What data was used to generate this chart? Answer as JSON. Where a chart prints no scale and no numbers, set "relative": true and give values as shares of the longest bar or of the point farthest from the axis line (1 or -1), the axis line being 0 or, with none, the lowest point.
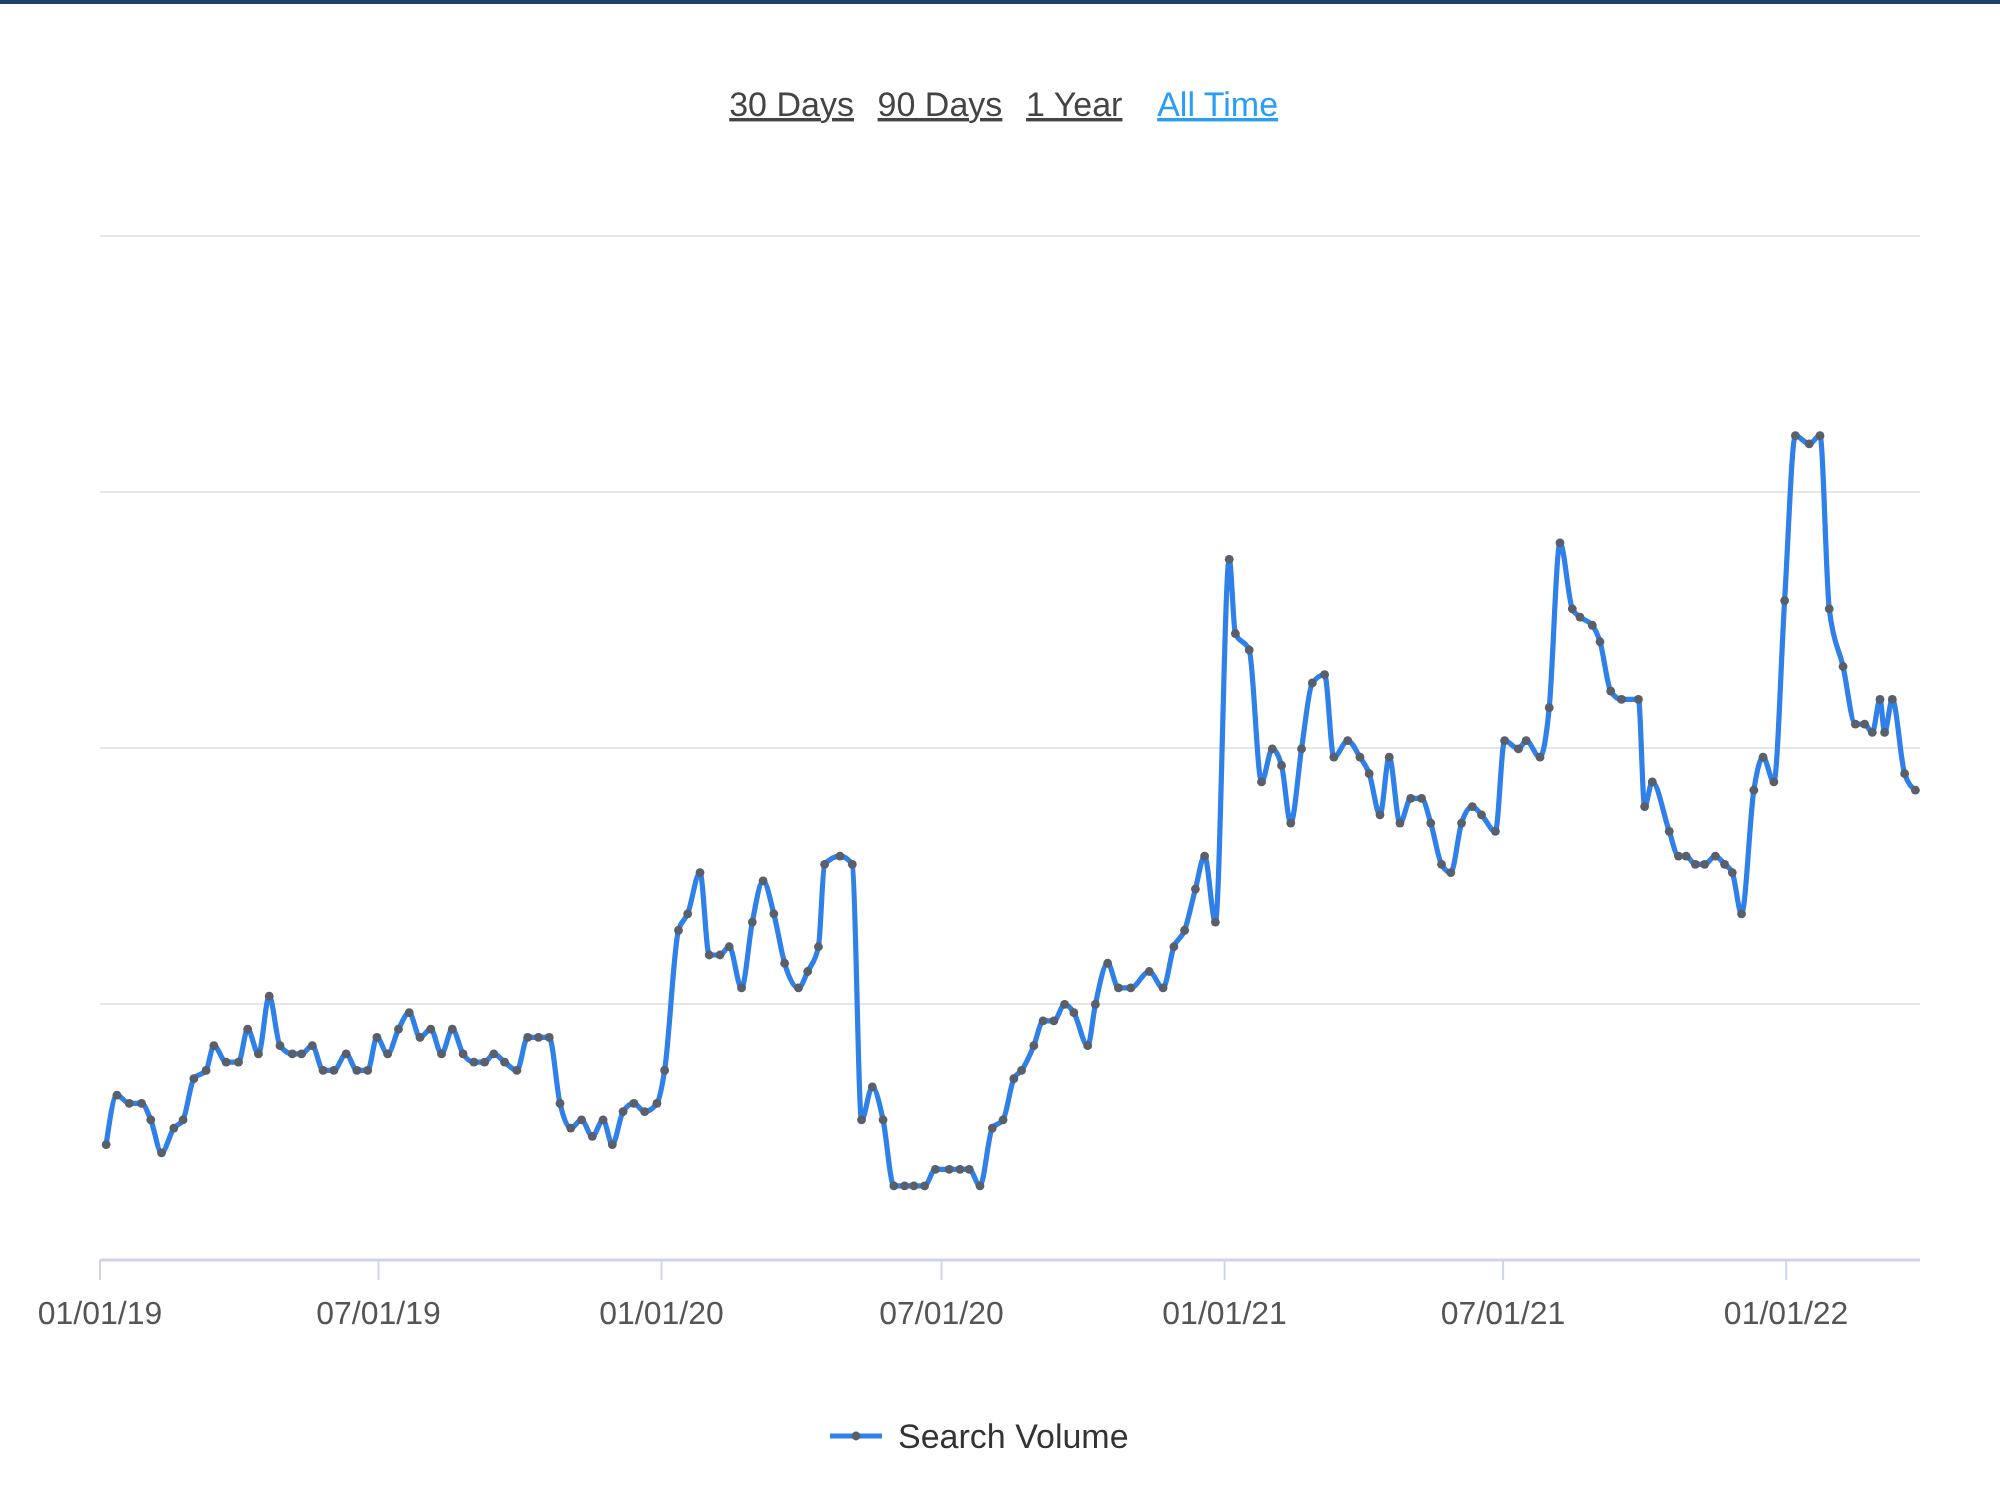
{
  "chart_data": {
    "type": "line",
    "relative": true,
    "annotations": [
      "30 Days",
      "90 Days",
      "1 Year",
      "All Time"
    ],
    "xlim": [
      "2019-01-01",
      "2022-03-29"
    ],
    "xticks": [
      {
        "value": "2019-01-01",
        "label": "01/01/19"
      },
      {
        "value": "2019-07-01",
        "label": "07/01/19"
      },
      {
        "value": "2020-01-01",
        "label": "01/01/20"
      },
      {
        "value": "2020-07-01",
        "label": "07/01/20"
      },
      {
        "value": "2021-01-01",
        "label": "01/01/21"
      },
      {
        "value": "2021-07-01",
        "label": "07/01/21"
      },
      {
        "value": "2022-01-01",
        "label": "01/01/22"
      }
    ],
    "grid": "y",
    "legend": "bottom",
    "marker": "circle",
    "line_style": "solid",
    "series": [
      {
        "name": "Search Volume",
        "color": "#2f80e8",
        "x": [
          "2019-01-05",
          "2019-01-12",
          "2019-01-20",
          "2019-01-28",
          "2019-02-03",
          "2019-02-10",
          "2019-02-18",
          "2019-02-24",
          "2019-03-03",
          "2019-03-11",
          "2019-03-16",
          "2019-03-24",
          "2019-04-01",
          "2019-04-07",
          "2019-04-14",
          "2019-04-21",
          "2019-04-28",
          "2019-05-06",
          "2019-05-12",
          "2019-05-19",
          "2019-05-26",
          "2019-06-02",
          "2019-06-10",
          "2019-06-17",
          "2019-06-24",
          "2019-06-30",
          "2019-07-07",
          "2019-07-14",
          "2019-07-21",
          "2019-07-28",
          "2019-08-04",
          "2019-08-11",
          "2019-08-18",
          "2019-08-25",
          "2019-09-01",
          "2019-09-08",
          "2019-09-14",
          "2019-09-21",
          "2019-09-29",
          "2019-10-06",
          "2019-10-13",
          "2019-10-20",
          "2019-10-27",
          "2019-11-03",
          "2019-11-10",
          "2019-11-17",
          "2019-11-24",
          "2019-11-30",
          "2019-12-07",
          "2019-12-14",
          "2019-12-21",
          "2019-12-29",
          "2020-01-03",
          "2020-01-12",
          "2020-01-18",
          "2020-01-26",
          "2020-02-01",
          "2020-02-08",
          "2020-02-14",
          "2020-02-22",
          "2020-02-29",
          "2020-03-07",
          "2020-03-14",
          "2020-03-21",
          "2020-03-30",
          "2020-04-05",
          "2020-04-12",
          "2020-04-16",
          "2020-04-26",
          "2020-05-04",
          "2020-05-10",
          "2020-05-17",
          "2020-05-24",
          "2020-05-31",
          "2020-06-07",
          "2020-06-13",
          "2020-06-20",
          "2020-06-27",
          "2020-07-06",
          "2020-07-13",
          "2020-07-19",
          "2020-07-26",
          "2020-08-03",
          "2020-08-10",
          "2020-08-17",
          "2020-08-22",
          "2020-08-30",
          "2020-09-05",
          "2020-09-12",
          "2020-09-19",
          "2020-09-25",
          "2020-10-04",
          "2020-10-09",
          "2020-10-17",
          "2020-10-24",
          "2020-11-01",
          "2020-11-13",
          "2020-11-22",
          "2020-11-29",
          "2020-12-06",
          "2020-12-13",
          "2020-12-19",
          "2020-12-26",
          "2021-01-04",
          "2021-01-08",
          "2021-01-17",
          "2021-01-25",
          "2021-02-01",
          "2021-02-07",
          "2021-02-13",
          "2021-02-20",
          "2021-02-27",
          "2021-03-07",
          "2021-03-13",
          "2021-03-22",
          "2021-03-30",
          "2021-04-05",
          "2021-04-12",
          "2021-04-18",
          "2021-04-25",
          "2021-05-02",
          "2021-05-09",
          "2021-05-15",
          "2021-05-22",
          "2021-05-28",
          "2021-06-04",
          "2021-06-11",
          "2021-06-17",
          "2021-06-26",
          "2021-07-02",
          "2021-07-11",
          "2021-07-16",
          "2021-07-25",
          "2021-07-31",
          "2021-08-07",
          "2021-08-15",
          "2021-08-20",
          "2021-08-28",
          "2021-09-02",
          "2021-09-09",
          "2021-09-16",
          "2021-09-27",
          "2021-10-01",
          "2021-10-06",
          "2021-10-17",
          "2021-10-23",
          "2021-10-28",
          "2021-11-03",
          "2021-11-09",
          "2021-11-16",
          "2021-11-22",
          "2021-11-27",
          "2021-12-03",
          "2021-12-11",
          "2021-12-17",
          "2021-12-24",
          "2021-12-31",
          "2022-01-07",
          "2022-01-16",
          "2022-01-23",
          "2022-01-29",
          "2022-02-07",
          "2022-02-15",
          "2022-02-21",
          "2022-02-26",
          "2022-03-03",
          "2022-03-06",
          "2022-03-11",
          "2022-03-19",
          "2022-03-26"
        ],
        "values": [
          0.14,
          0.2,
          0.19,
          0.19,
          0.17,
          0.13,
          0.16,
          0.17,
          0.22,
          0.23,
          0.26,
          0.24,
          0.24,
          0.28,
          0.25,
          0.32,
          0.26,
          0.25,
          0.25,
          0.26,
          0.23,
          0.23,
          0.25,
          0.23,
          0.23,
          0.27,
          0.25,
          0.28,
          0.3,
          0.27,
          0.28,
          0.25,
          0.28,
          0.25,
          0.24,
          0.24,
          0.25,
          0.24,
          0.23,
          0.27,
          0.27,
          0.27,
          0.19,
          0.16,
          0.17,
          0.15,
          0.17,
          0.14,
          0.18,
          0.19,
          0.18,
          0.19,
          0.23,
          0.4,
          0.42,
          0.47,
          0.37,
          0.37,
          0.38,
          0.33,
          0.41,
          0.46,
          0.42,
          0.36,
          0.33,
          0.35,
          0.38,
          0.48,
          0.49,
          0.48,
          0.17,
          0.21,
          0.17,
          0.09,
          0.09,
          0.09,
          0.09,
          0.11,
          0.11,
          0.11,
          0.11,
          0.09,
          0.16,
          0.17,
          0.22,
          0.23,
          0.26,
          0.29,
          0.29,
          0.31,
          0.3,
          0.26,
          0.31,
          0.36,
          0.33,
          0.33,
          0.35,
          0.33,
          0.38,
          0.4,
          0.45,
          0.49,
          0.41,
          0.85,
          0.76,
          0.74,
          0.58,
          0.62,
          0.6,
          0.53,
          0.62,
          0.7,
          0.71,
          0.61,
          0.63,
          0.61,
          0.59,
          0.54,
          0.61,
          0.53,
          0.56,
          0.56,
          0.53,
          0.48,
          0.47,
          0.53,
          0.55,
          0.54,
          0.52,
          0.63,
          0.62,
          0.63,
          0.61,
          0.67,
          0.87,
          0.79,
          0.78,
          0.77,
          0.75,
          0.69,
          0.68,
          0.68,
          0.55,
          0.58,
          0.52,
          0.49,
          0.49,
          0.48,
          0.48,
          0.49,
          0.48,
          0.47,
          0.42,
          0.57,
          0.61,
          0.58,
          0.8,
          1,
          0.99,
          1,
          0.79,
          0.72,
          0.65,
          0.65,
          0.64,
          0.68,
          0.64,
          0.68,
          0.59,
          0.57
        ]
      }
    ]
  }
}
